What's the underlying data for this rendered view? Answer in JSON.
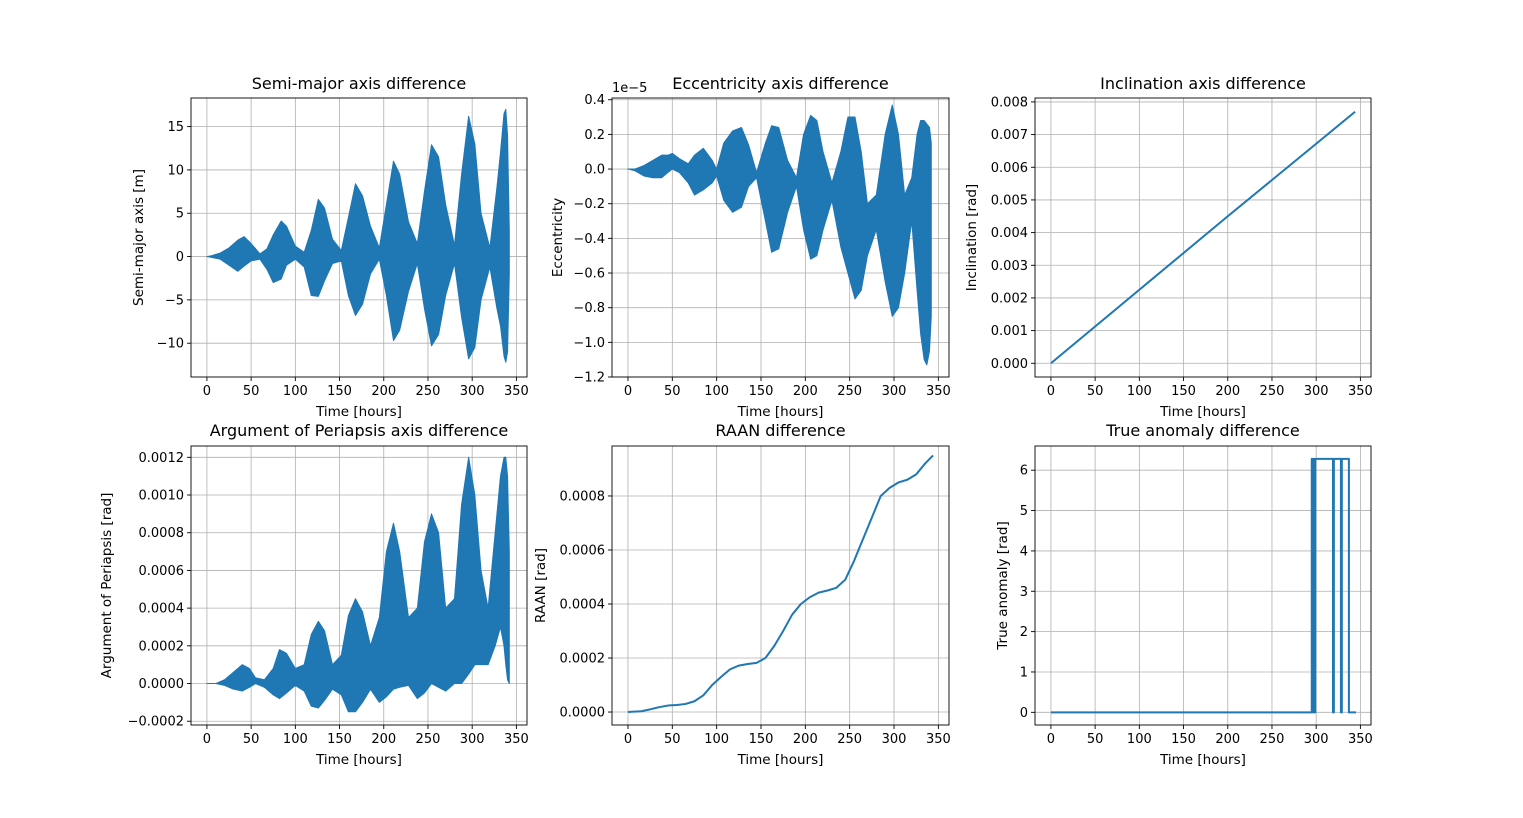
{
  "chart_data": [
    {
      "type": "line",
      "title": "Semi-major axis difference",
      "xlabel": "Time [hours]",
      "ylabel": "Semi-major axis [m]",
      "xlim": [
        -18,
        362
      ],
      "ylim": [
        -13.9,
        18.3
      ],
      "xticks": [
        0,
        50,
        100,
        150,
        200,
        250,
        300,
        350
      ],
      "xtick_labels": [
        "0",
        "50",
        "100",
        "150",
        "200",
        "250",
        "300",
        "350"
      ],
      "yticks": [
        -10,
        -5,
        0,
        5,
        10,
        15
      ],
      "ytick_labels": [
        "−10",
        "−5",
        "0",
        "5",
        "10",
        "15"
      ],
      "offset_text": "",
      "grid": true,
      "color": "#1f77b4",
      "series": [
        {
          "style": "band",
          "x": [
            0,
            5,
            15,
            25,
            35,
            42,
            50,
            60,
            68,
            75,
            84,
            90,
            100,
            110,
            118,
            126,
            133,
            142,
            152,
            160,
            168,
            176,
            185,
            195,
            203,
            211,
            218,
            228,
            238,
            246,
            254,
            262,
            270,
            280,
            288,
            296,
            303,
            310,
            320,
            328,
            332,
            336,
            338,
            340,
            342
          ],
          "upper": [
            0,
            0.1,
            0.4,
            1.0,
            1.9,
            2.3,
            1.5,
            0.3,
            0.9,
            2.5,
            4.1,
            3.5,
            1.2,
            0.5,
            3.0,
            6.6,
            5.6,
            2.0,
            0.7,
            4.5,
            8.4,
            7.0,
            3.5,
            1.0,
            6.0,
            11.0,
            9.5,
            4.0,
            1.5,
            7.5,
            12.9,
            11.5,
            6.0,
            1.3,
            9.5,
            16.2,
            13.0,
            5.0,
            1.0,
            8.0,
            12.0,
            16.5,
            17.0,
            14.0,
            3.0
          ],
          "lower": [
            0,
            -0.1,
            -0.3,
            -1.0,
            -1.7,
            -1.1,
            -0.5,
            -0.3,
            -1.5,
            -3.0,
            -2.6,
            -1.0,
            -0.3,
            -1.2,
            -4.5,
            -4.6,
            -2.8,
            -0.8,
            -0.5,
            -4.5,
            -6.8,
            -5.5,
            -2.0,
            -0.3,
            -4.5,
            -9.7,
            -8.5,
            -4.0,
            -0.8,
            -6.0,
            -10.3,
            -9.0,
            -4.5,
            -0.8,
            -7.0,
            -11.8,
            -10.5,
            -5.0,
            -1.2,
            -6.0,
            -8.0,
            -11.5,
            -12.2,
            -11.0,
            -2.0
          ]
        }
      ]
    },
    {
      "type": "line",
      "title": "Eccentricity axis difference",
      "xlabel": "Time [hours]",
      "ylabel": "Eccentricity",
      "xlim": [
        -18,
        362
      ],
      "ylim": [
        -1.2,
        0.41
      ],
      "xticks": [
        0,
        50,
        100,
        150,
        200,
        250,
        300,
        350
      ],
      "xtick_labels": [
        "0",
        "50",
        "100",
        "150",
        "200",
        "250",
        "300",
        "350"
      ],
      "yticks": [
        -1.2,
        -1.0,
        -0.8,
        -0.6,
        -0.4,
        -0.2,
        0.0,
        0.2,
        0.4
      ],
      "ytick_labels": [
        "−1.2",
        "−1.0",
        "−0.8",
        "−0.6",
        "−0.4",
        "−0.2",
        "0.0",
        "0.2",
        "0.4"
      ],
      "offset_text": "1e−5",
      "grid": true,
      "color": "#1f77b4",
      "series": [
        {
          "style": "band",
          "x": [
            0,
            8,
            18,
            28,
            38,
            45,
            50,
            58,
            68,
            75,
            85,
            95,
            100,
            108,
            118,
            128,
            136,
            145,
            155,
            162,
            170,
            180,
            190,
            198,
            206,
            213,
            220,
            230,
            240,
            248,
            256,
            263,
            270,
            280,
            290,
            298,
            305,
            312,
            320,
            326,
            330,
            334,
            337,
            340,
            342
          ],
          "upper": [
            0.0,
            0.0,
            0.02,
            0.05,
            0.08,
            0.08,
            0.09,
            0.06,
            0.03,
            0.08,
            0.12,
            0.05,
            0.0,
            0.15,
            0.22,
            0.24,
            0.14,
            -0.02,
            0.15,
            0.25,
            0.24,
            0.05,
            -0.05,
            0.2,
            0.31,
            0.28,
            0.1,
            -0.08,
            0.1,
            0.3,
            0.3,
            0.1,
            -0.2,
            -0.15,
            0.2,
            0.37,
            0.2,
            -0.15,
            -0.05,
            0.2,
            0.28,
            0.28,
            0.26,
            0.24,
            0.15
          ],
          "lower": [
            0.0,
            -0.01,
            -0.04,
            -0.05,
            -0.05,
            -0.02,
            0.0,
            -0.02,
            -0.08,
            -0.15,
            -0.12,
            -0.08,
            -0.04,
            -0.18,
            -0.25,
            -0.22,
            -0.1,
            -0.05,
            -0.3,
            -0.48,
            -0.46,
            -0.25,
            -0.1,
            -0.35,
            -0.52,
            -0.5,
            -0.35,
            -0.18,
            -0.45,
            -0.6,
            -0.75,
            -0.7,
            -0.5,
            -0.35,
            -0.65,
            -0.85,
            -0.8,
            -0.6,
            -0.3,
            -0.7,
            -0.95,
            -1.1,
            -1.13,
            -1.05,
            -0.85
          ]
        }
      ]
    },
    {
      "type": "line",
      "title": "Inclination axis difference",
      "xlabel": "Time [hours]",
      "ylabel": "Inclination [rad]",
      "xlim": [
        -18,
        362
      ],
      "ylim": [
        -0.00042,
        0.00812
      ],
      "xticks": [
        0,
        50,
        100,
        150,
        200,
        250,
        300,
        350
      ],
      "xtick_labels": [
        "0",
        "50",
        "100",
        "150",
        "200",
        "250",
        "300",
        "350"
      ],
      "yticks": [
        0,
        0.001,
        0.002,
        0.003,
        0.004,
        0.005,
        0.006,
        0.007,
        0.008
      ],
      "ytick_labels": [
        "0.000",
        "0.001",
        "0.002",
        "0.003",
        "0.004",
        "0.005",
        "0.006",
        "0.007",
        "0.008"
      ],
      "offset_text": "",
      "grid": true,
      "color": "#1f77b4",
      "series": [
        {
          "style": "line",
          "x": [
            0,
            100,
            200,
            300,
            344
          ],
          "y": [
            0.0,
            0.00225,
            0.0045,
            0.00672,
            0.0077
          ]
        }
      ]
    },
    {
      "type": "line",
      "title": "Argument of Periapsis axis difference",
      "xlabel": "Time [hours]",
      "ylabel": "Argument of Periapsis [rad]",
      "xlim": [
        -18,
        362
      ],
      "ylim": [
        -0.00022,
        0.00126
      ],
      "xticks": [
        0,
        50,
        100,
        150,
        200,
        250,
        300,
        350
      ],
      "xtick_labels": [
        "0",
        "50",
        "100",
        "150",
        "200",
        "250",
        "300",
        "350"
      ],
      "yticks": [
        -0.0002,
        0,
        0.0002,
        0.0004,
        0.0006,
        0.0008,
        0.001,
        0.0012
      ],
      "ytick_labels": [
        "−0.0002",
        "0.0000",
        "0.0002",
        "0.0004",
        "0.0006",
        "0.0008",
        "0.0010",
        "0.0012"
      ],
      "offset_text": "",
      "grid": true,
      "color": "#1f77b4",
      "series": [
        {
          "style": "band",
          "x": [
            0,
            10,
            20,
            30,
            40,
            48,
            55,
            65,
            75,
            82,
            90,
            100,
            110,
            118,
            126,
            133,
            142,
            152,
            160,
            168,
            176,
            185,
            195,
            203,
            211,
            218,
            228,
            238,
            246,
            254,
            262,
            270,
            280,
            288,
            296,
            303,
            310,
            318,
            326,
            332,
            336,
            338,
            340,
            342
          ],
          "upper": [
            0.0,
            0.0,
            2e-05,
            6e-05,
            0.0001,
            8e-05,
            3e-05,
            2e-05,
            8e-05,
            0.00018,
            0.00016,
            8e-05,
            0.0001,
            0.00026,
            0.00033,
            0.00028,
            0.0001,
            0.00015,
            0.00036,
            0.00045,
            0.00038,
            0.0002,
            0.00035,
            0.0007,
            0.00085,
            0.0007,
            0.00035,
            0.0004,
            0.00075,
            0.0009,
            0.0008,
            0.0004,
            0.00045,
            0.00095,
            0.0012,
            0.001,
            0.0006,
            0.0004,
            0.0008,
            0.0011,
            0.0012,
            0.0012,
            0.0011,
            0.0007
          ],
          "lower": [
            0.0,
            0.0,
            -1e-05,
            -3e-05,
            -4e-05,
            -2e-05,
            0.0,
            -2e-05,
            -6e-05,
            -8e-05,
            -5e-05,
            -1e-05,
            -4e-05,
            -0.00012,
            -0.00013,
            -9e-05,
            -3e-05,
            -6e-05,
            -0.00015,
            -0.00015,
            -0.0001,
            -3e-05,
            -0.0001,
            -7e-05,
            -3e-05,
            -2e-05,
            -1e-05,
            -8e-05,
            -5e-05,
            0.0,
            -2e-05,
            -4e-05,
            0.0,
            0.0,
            5e-05,
            0.0001,
            0.0001,
            0.0001,
            0.0002,
            0.0003,
            0.0002,
            0.0001,
            2e-05,
            0.0
          ]
        }
      ]
    },
    {
      "type": "line",
      "title": "RAAN difference",
      "xlabel": "Time [hours]",
      "ylabel": "RAAN [rad]",
      "xlim": [
        -18,
        362
      ],
      "ylim": [
        -4.8e-05,
        0.000985
      ],
      "xticks": [
        0,
        50,
        100,
        150,
        200,
        250,
        300,
        350
      ],
      "xtick_labels": [
        "0",
        "50",
        "100",
        "150",
        "200",
        "250",
        "300",
        "350"
      ],
      "yticks": [
        0,
        0.0002,
        0.0004,
        0.0006,
        0.0008
      ],
      "ytick_labels": [
        "0.0000",
        "0.0002",
        "0.0004",
        "0.0006",
        "0.0008"
      ],
      "offset_text": "",
      "grid": true,
      "color": "#1f77b4",
      "series": [
        {
          "style": "line",
          "x": [
            0,
            15,
            25,
            35,
            45,
            55,
            65,
            75,
            85,
            95,
            105,
            115,
            125,
            135,
            145,
            155,
            165,
            175,
            185,
            195,
            205,
            215,
            225,
            235,
            245,
            255,
            265,
            275,
            285,
            295,
            305,
            315,
            325,
            335,
            344
          ],
          "y": [
            0.0,
            3e-06,
            1e-05,
            1.8e-05,
            2.4e-05,
            2.6e-05,
            3e-05,
            4e-05,
            6.2e-05,
            0.0001,
            0.00013,
            0.000158,
            0.000172,
            0.000178,
            0.000182,
            0.0002,
            0.000245,
            0.0003,
            0.00036,
            0.0004,
            0.000425,
            0.000442,
            0.00045,
            0.00046,
            0.00049,
            0.00056,
            0.00064,
            0.00072,
            0.0008,
            0.00083,
            0.00085,
            0.00086,
            0.00088,
            0.00092,
            0.00095
          ]
        }
      ]
    },
    {
      "type": "line",
      "title": "True anomaly difference",
      "xlabel": "Time [hours]",
      "ylabel": "True anomaly [rad]",
      "xlim": [
        -18,
        362
      ],
      "ylim": [
        -0.314,
        6.6
      ],
      "xticks": [
        0,
        50,
        100,
        150,
        200,
        250,
        300,
        350
      ],
      "xtick_labels": [
        "0",
        "50",
        "100",
        "150",
        "200",
        "250",
        "300",
        "350"
      ],
      "yticks": [
        0,
        1,
        2,
        3,
        4,
        5,
        6
      ],
      "ytick_labels": [
        "0",
        "1",
        "2",
        "3",
        "4",
        "5",
        "6"
      ],
      "offset_text": "",
      "grid": true,
      "color": "#1f77b4",
      "series": [
        {
          "style": "line",
          "x": [
            0,
            295,
            295,
            296,
            296,
            297,
            297,
            298,
            298,
            299,
            299,
            319,
            319,
            320,
            320,
            328,
            328,
            329,
            329,
            337,
            337,
            338,
            338,
            345
          ],
          "y": [
            0,
            0,
            6.28,
            6.28,
            0,
            0,
            6.28,
            6.28,
            0,
            0,
            6.28,
            6.28,
            0,
            0,
            6.28,
            6.28,
            0,
            0,
            6.28,
            6.28,
            0,
            0,
            0,
            0
          ]
        }
      ]
    }
  ]
}
